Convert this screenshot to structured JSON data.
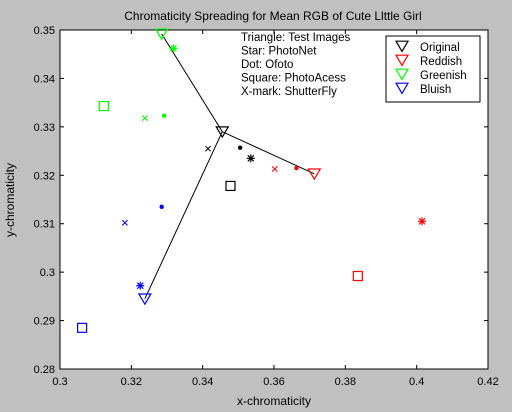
{
  "chart_data": {
    "type": "scatter",
    "title": "Chromaticity Spreading for Mean RGB of Cute Llttle Girl",
    "xlabel": "x-chromaticity",
    "ylabel": "y-chromaticity",
    "xlim": [
      0.3,
      0.42
    ],
    "ylim": [
      0.28,
      0.35
    ],
    "xticks": [
      0.3,
      0.32,
      0.34,
      0.36,
      0.38,
      0.4,
      0.42
    ],
    "yticks": [
      0.28,
      0.29,
      0.3,
      0.31,
      0.32,
      0.33,
      0.34,
      0.35
    ],
    "xtick_labels": [
      "0.3",
      "0.32",
      "0.34",
      "0.36",
      "0.38",
      "0.4",
      "0.42"
    ],
    "ytick_labels": [
      "0.28",
      "0.29",
      "0.3",
      "0.31",
      "0.32",
      "0.33",
      "0.34",
      "0.35"
    ],
    "grid": false,
    "legend_position": "top-right",
    "annotation_lines": [
      "Triangle: Test Images",
      "Star: PhotoNet",
      "Dot: Ofoto",
      "Square: PhotoAcess",
      "X-mark: ShutterFly"
    ],
    "legend": [
      {
        "label": "Original",
        "color": "#000000",
        "marker": "triangle"
      },
      {
        "label": "Reddish",
        "color": "#ff0000",
        "marker": "triangle"
      },
      {
        "label": "Greenish",
        "color": "#00ff00",
        "marker": "triangle"
      },
      {
        "label": "Bluish",
        "color": "#0000ff",
        "marker": "triangle"
      }
    ],
    "lines": [
      {
        "from": [
          0.3455,
          0.329
        ],
        "to": [
          0.3285,
          0.3492
        ],
        "color": "#000000"
      },
      {
        "from": [
          0.3455,
          0.329
        ],
        "to": [
          0.3713,
          0.3203
        ],
        "color": "#000000"
      },
      {
        "from": [
          0.3455,
          0.329
        ],
        "to": [
          0.3238,
          0.2945
        ],
        "color": "#000000"
      }
    ],
    "series": [
      {
        "group": "Original",
        "color": "#000000",
        "points": [
          {
            "marker": "triangle",
            "x": 0.3455,
            "y": 0.329
          },
          {
            "marker": "star",
            "x": 0.3535,
            "y": 0.3235
          },
          {
            "marker": "dot",
            "x": 0.3505,
            "y": 0.3257
          },
          {
            "marker": "square",
            "x": 0.3478,
            "y": 0.3178
          },
          {
            "marker": "x",
            "x": 0.3415,
            "y": 0.3255
          }
        ]
      },
      {
        "group": "Reddish",
        "color": "#ff0000",
        "points": [
          {
            "marker": "triangle",
            "x": 0.3713,
            "y": 0.3203
          },
          {
            "marker": "star",
            "x": 0.4015,
            "y": 0.3105
          },
          {
            "marker": "dot",
            "x": 0.3663,
            "y": 0.3215
          },
          {
            "marker": "square",
            "x": 0.3835,
            "y": 0.2992
          },
          {
            "marker": "x",
            "x": 0.3602,
            "y": 0.3213
          }
        ]
      },
      {
        "group": "Greenish",
        "color": "#00ff00",
        "points": [
          {
            "marker": "triangle",
            "x": 0.3285,
            "y": 0.3492
          },
          {
            "marker": "star",
            "x": 0.3318,
            "y": 0.3462
          },
          {
            "marker": "dot",
            "x": 0.3292,
            "y": 0.3323
          },
          {
            "marker": "square",
            "x": 0.3123,
            "y": 0.3343
          },
          {
            "marker": "x",
            "x": 0.3238,
            "y": 0.3318
          }
        ]
      },
      {
        "group": "Bluish",
        "color": "#0000ff",
        "points": [
          {
            "marker": "triangle",
            "x": 0.3238,
            "y": 0.2945
          },
          {
            "marker": "star",
            "x": 0.3225,
            "y": 0.2972
          },
          {
            "marker": "dot",
            "x": 0.3285,
            "y": 0.3135
          },
          {
            "marker": "square",
            "x": 0.3062,
            "y": 0.2885
          },
          {
            "marker": "x",
            "x": 0.3182,
            "y": 0.3102
          }
        ]
      }
    ]
  }
}
